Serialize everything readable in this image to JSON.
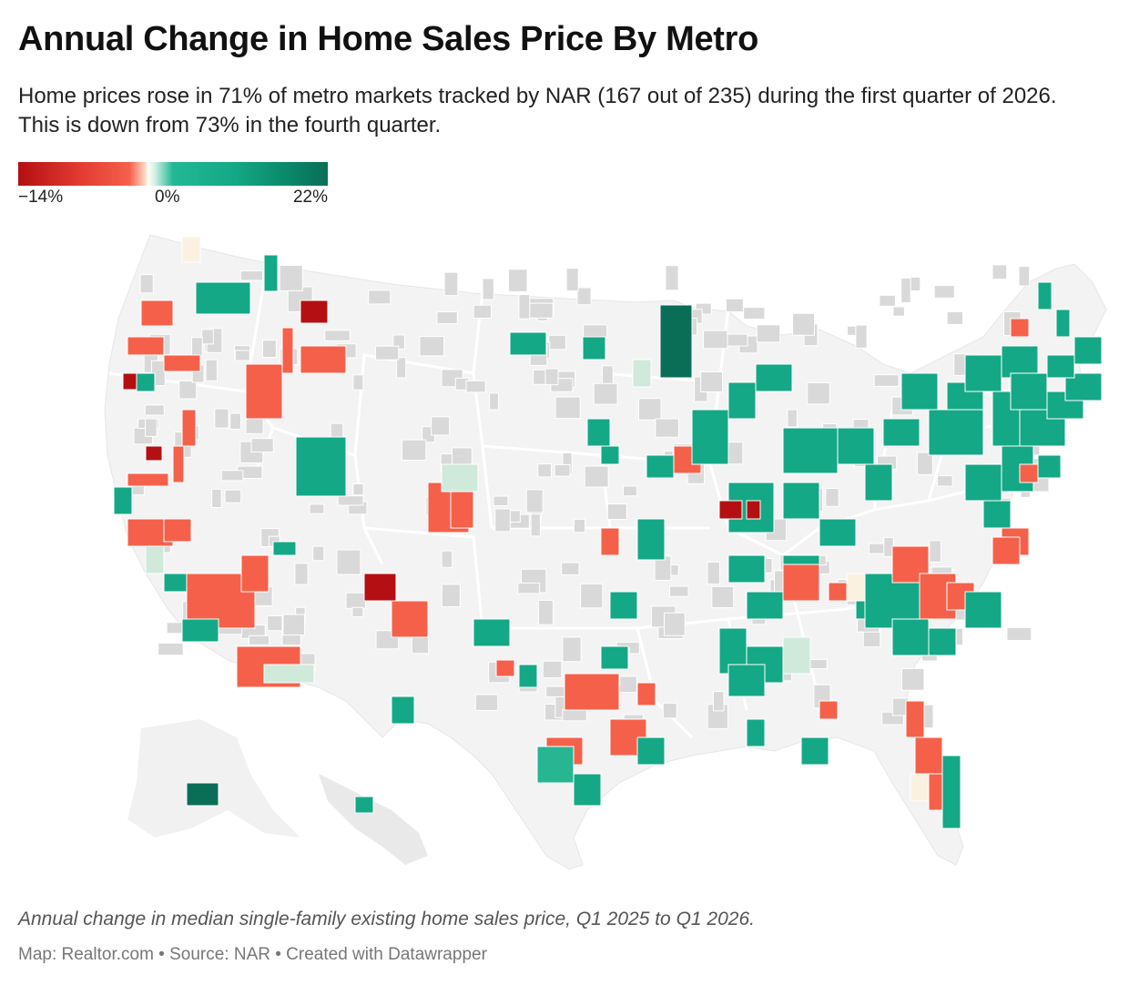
{
  "header": {
    "title": "Annual Change in Home Sales Price By Metro",
    "subtitle": "Home prices rose in 71% of metro markets tracked by NAR (167 out of 235) during the first quarter of 2026. This is down from 73% in the fourth quarter."
  },
  "legend": {
    "min_label": "−14%",
    "mid_label": "0%",
    "max_label": "22%",
    "min_value": -14,
    "mid_value": 0,
    "max_value": 22
  },
  "colors": {
    "strong_decline": "#b40f12",
    "decline": "#f5604b",
    "neutral": "#fdfdf5",
    "gain": "#14a886",
    "strong_gain": "#0a6e57",
    "no_data_county": "#d9d9d9",
    "land": "#f3f3f3",
    "state_border": "#ffffff"
  },
  "map_data": {
    "type": "choropleth",
    "region": "United States metro areas",
    "metros_tracked": 235,
    "metros_with_price_increase": 167,
    "share_with_increase": "71%",
    "prior_quarter_share": "73%"
  },
  "footer": {
    "note": "Annual change in median single-family existing home sales price, Q1 2025 to Q1 2026.",
    "credit": "Map: Realtor.com • Source: NAR • Created with Datawrapper"
  }
}
